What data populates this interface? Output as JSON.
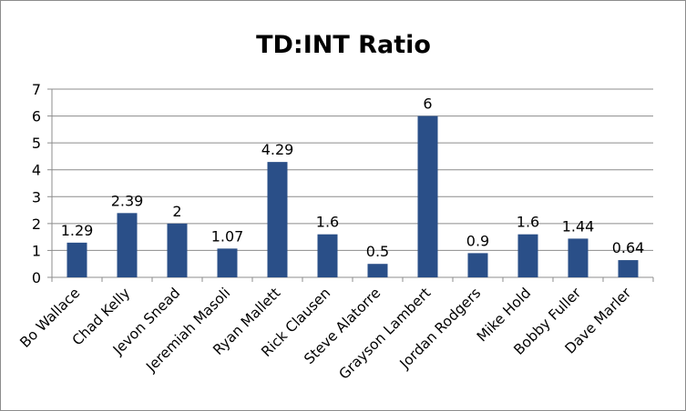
{
  "chart_data": {
    "type": "bar",
    "title": "TD:INT Ratio",
    "xlabel": "",
    "ylabel": "",
    "categories": [
      "Bo Wallace",
      "Chad Kelly",
      "Jevon Snead",
      "Jeremiah Masoli",
      "Ryan Mallett",
      "Rick Clausen",
      "Steve Alatorre",
      "Grayson Lambert",
      "Jordan Rodgers",
      "Mike Hold",
      "Bobby Fuller",
      "Dave Marler"
    ],
    "values": [
      1.29,
      2.39,
      2,
      1.07,
      4.29,
      1.6,
      0.5,
      6,
      0.9,
      1.6,
      1.44,
      0.64
    ],
    "data_labels": [
      "1.29",
      "2.39",
      "2",
      "1.07",
      "4.29",
      "1.6",
      "0.5",
      "6",
      "0.9",
      "1.6",
      "1.44",
      "0.64"
    ],
    "ylim": [
      0,
      7
    ],
    "yticks": [
      0,
      1,
      2,
      3,
      4,
      5,
      6,
      7
    ],
    "ytick_labels": [
      "0",
      "1",
      "2",
      "3",
      "4",
      "5",
      "6",
      "7"
    ],
    "grid": true,
    "legend": "none",
    "bar_color": "#2a4f88",
    "grid_color": "#8c8c8c"
  }
}
